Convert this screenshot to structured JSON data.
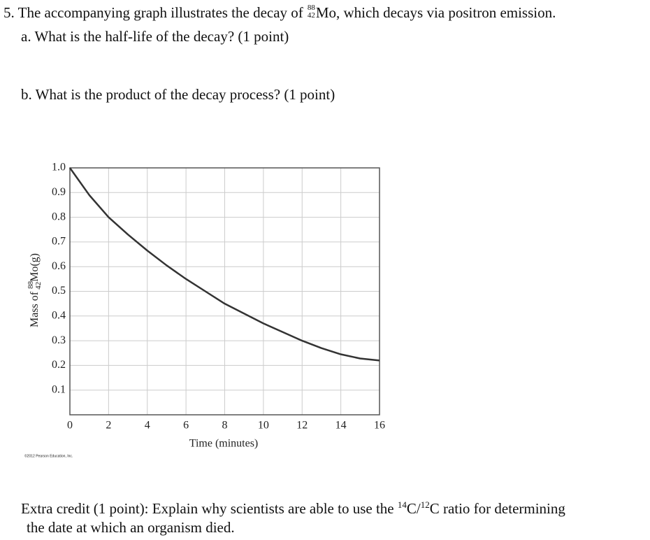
{
  "question": {
    "text_before": "5. The accompanying graph illustrates the decay of",
    "nuclide": {
      "mass": "88",
      "atomic": "42",
      "symbol": "Mo"
    },
    "text_after": ", which decays via positron emission.",
    "part_a": "a. What is the half-life of the decay? (1 point)",
    "part_b": "b. What is the product of the decay process? (1 point)"
  },
  "chart_data": {
    "type": "line",
    "x_label": "Time (minutes)",
    "y_label": {
      "before": "Mass of",
      "mass": "88",
      "atomic": "42",
      "symbol": "Mo",
      "after": "(g)"
    },
    "x": [
      0,
      1,
      2,
      3,
      4,
      5,
      6,
      7,
      8,
      9,
      10,
      11,
      12,
      13,
      14,
      15,
      16
    ],
    "values": [
      1.0,
      0.89,
      0.8,
      0.73,
      0.665,
      0.605,
      0.55,
      0.5,
      0.45,
      0.41,
      0.37,
      0.335,
      0.3,
      0.27,
      0.245,
      0.228,
      0.22
    ],
    "color": "#333333",
    "xlim": [
      0,
      16
    ],
    "xticks": [
      0,
      2,
      4,
      6,
      8,
      10,
      12,
      14,
      16
    ],
    "ylim": [
      0,
      1
    ],
    "yticks": [
      0.1,
      0.2,
      0.3,
      0.4,
      0.5,
      0.6,
      0.7,
      0.8,
      0.9,
      {
        "value": 1,
        "label": "1.0"
      }
    ],
    "grid": true,
    "copyright": "©2012 Pearson Education, Inc."
  },
  "extra_credit": {
    "text_before": "Extra credit (1 point): Explain why scientists are able to use the",
    "sup1": "14",
    "mid": "C/",
    "sup2": "12",
    "text_after": "C ratio for determining",
    "line2": "the date at which an organism died."
  }
}
